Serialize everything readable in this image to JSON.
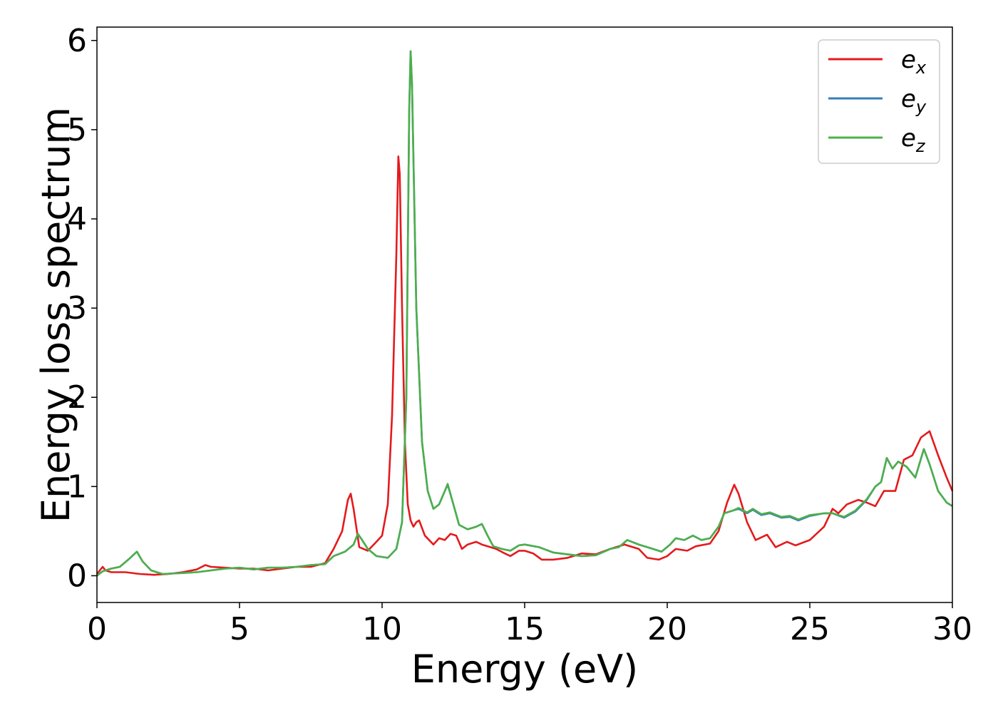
{
  "chart_data": {
    "type": "line",
    "title": "",
    "xlabel": "Energy (eV)",
    "ylabel": "Energy loss spectrum",
    "xlim": [
      0,
      30
    ],
    "ylim": [
      -0.3,
      6.15
    ],
    "xticks": [
      0,
      5,
      10,
      15,
      20,
      25,
      30
    ],
    "xtick_labels": [
      "0",
      "5",
      "10",
      "15",
      "20",
      "25",
      "30"
    ],
    "yticks": [
      0,
      1,
      2,
      3,
      4,
      5,
      6
    ],
    "ytick_labels": [
      "0",
      "1",
      "2",
      "3",
      "4",
      "5",
      "6"
    ],
    "grid": false,
    "legend_position": "top-right",
    "series": [
      {
        "name": "e_x",
        "label_base": "e",
        "label_sub": "x",
        "color": "#e41a1c",
        "points": [
          [
            0.0,
            0.02
          ],
          [
            0.1,
            0.06
          ],
          [
            0.2,
            0.1
          ],
          [
            0.3,
            0.06
          ],
          [
            0.5,
            0.04
          ],
          [
            1.0,
            0.04
          ],
          [
            1.5,
            0.02
          ],
          [
            2.0,
            0.01
          ],
          [
            2.5,
            0.02
          ],
          [
            3.0,
            0.04
          ],
          [
            3.5,
            0.07
          ],
          [
            3.8,
            0.12
          ],
          [
            4.0,
            0.1
          ],
          [
            4.5,
            0.09
          ],
          [
            5.0,
            0.08
          ],
          [
            5.5,
            0.08
          ],
          [
            6.0,
            0.06
          ],
          [
            6.5,
            0.08
          ],
          [
            7.0,
            0.1
          ],
          [
            7.5,
            0.1
          ],
          [
            8.0,
            0.14
          ],
          [
            8.3,
            0.3
          ],
          [
            8.6,
            0.5
          ],
          [
            8.8,
            0.85
          ],
          [
            8.9,
            0.92
          ],
          [
            9.0,
            0.75
          ],
          [
            9.2,
            0.32
          ],
          [
            9.5,
            0.28
          ],
          [
            9.8,
            0.38
          ],
          [
            10.0,
            0.45
          ],
          [
            10.2,
            0.8
          ],
          [
            10.35,
            1.8
          ],
          [
            10.5,
            3.6
          ],
          [
            10.57,
            4.7
          ],
          [
            10.62,
            4.5
          ],
          [
            10.7,
            3.0
          ],
          [
            10.8,
            1.5
          ],
          [
            10.9,
            0.8
          ],
          [
            11.0,
            0.62
          ],
          [
            11.1,
            0.55
          ],
          [
            11.2,
            0.6
          ],
          [
            11.3,
            0.62
          ],
          [
            11.5,
            0.45
          ],
          [
            11.8,
            0.35
          ],
          [
            12.0,
            0.42
          ],
          [
            12.2,
            0.4
          ],
          [
            12.4,
            0.47
          ],
          [
            12.6,
            0.45
          ],
          [
            12.8,
            0.3
          ],
          [
            13.0,
            0.35
          ],
          [
            13.3,
            0.38
          ],
          [
            13.5,
            0.35
          ],
          [
            13.8,
            0.32
          ],
          [
            14.0,
            0.3
          ],
          [
            14.3,
            0.25
          ],
          [
            14.5,
            0.22
          ],
          [
            14.8,
            0.28
          ],
          [
            15.0,
            0.28
          ],
          [
            15.3,
            0.25
          ],
          [
            15.6,
            0.18
          ],
          [
            16.0,
            0.18
          ],
          [
            16.5,
            0.2
          ],
          [
            17.0,
            0.25
          ],
          [
            17.5,
            0.24
          ],
          [
            18.0,
            0.3
          ],
          [
            18.5,
            0.35
          ],
          [
            19.0,
            0.3
          ],
          [
            19.3,
            0.2
          ],
          [
            19.7,
            0.18
          ],
          [
            20.0,
            0.22
          ],
          [
            20.3,
            0.3
          ],
          [
            20.7,
            0.28
          ],
          [
            21.0,
            0.33
          ],
          [
            21.5,
            0.36
          ],
          [
            21.8,
            0.5
          ],
          [
            22.1,
            0.82
          ],
          [
            22.35,
            1.02
          ],
          [
            22.5,
            0.92
          ],
          [
            22.8,
            0.6
          ],
          [
            23.1,
            0.4
          ],
          [
            23.5,
            0.46
          ],
          [
            23.8,
            0.32
          ],
          [
            24.2,
            0.38
          ],
          [
            24.5,
            0.34
          ],
          [
            25.0,
            0.4
          ],
          [
            25.5,
            0.55
          ],
          [
            25.8,
            0.75
          ],
          [
            26.0,
            0.7
          ],
          [
            26.3,
            0.8
          ],
          [
            26.7,
            0.85
          ],
          [
            27.0,
            0.82
          ],
          [
            27.3,
            0.78
          ],
          [
            27.6,
            0.95
          ],
          [
            28.0,
            0.95
          ],
          [
            28.3,
            1.3
          ],
          [
            28.6,
            1.35
          ],
          [
            28.9,
            1.55
          ],
          [
            29.2,
            1.62
          ],
          [
            29.5,
            1.35
          ],
          [
            29.8,
            1.1
          ],
          [
            30.0,
            0.95
          ]
        ]
      },
      {
        "name": "e_y",
        "label_base": "e",
        "label_sub": "y",
        "color": "#377eb8",
        "points": [
          [
            0.0,
            0.0
          ],
          [
            0.2,
            0.05
          ],
          [
            0.5,
            0.08
          ],
          [
            0.8,
            0.1
          ],
          [
            1.1,
            0.18
          ],
          [
            1.4,
            0.27
          ],
          [
            1.6,
            0.16
          ],
          [
            1.9,
            0.06
          ],
          [
            2.3,
            0.02
          ],
          [
            3.0,
            0.03
          ],
          [
            3.5,
            0.04
          ],
          [
            4.0,
            0.06
          ],
          [
            4.5,
            0.08
          ],
          [
            5.0,
            0.09
          ],
          [
            5.5,
            0.07
          ],
          [
            6.0,
            0.09
          ],
          [
            6.5,
            0.09
          ],
          [
            7.0,
            0.1
          ],
          [
            7.5,
            0.12
          ],
          [
            8.0,
            0.13
          ],
          [
            8.3,
            0.22
          ],
          [
            8.7,
            0.27
          ],
          [
            9.0,
            0.35
          ],
          [
            9.15,
            0.47
          ],
          [
            9.3,
            0.4
          ],
          [
            9.5,
            0.3
          ],
          [
            9.8,
            0.22
          ],
          [
            10.2,
            0.2
          ],
          [
            10.5,
            0.3
          ],
          [
            10.7,
            0.6
          ],
          [
            10.85,
            2.0
          ],
          [
            10.95,
            5.2
          ],
          [
            11.0,
            5.88
          ],
          [
            11.05,
            5.5
          ],
          [
            11.2,
            3.0
          ],
          [
            11.4,
            1.5
          ],
          [
            11.6,
            0.95
          ],
          [
            11.8,
            0.75
          ],
          [
            12.0,
            0.8
          ],
          [
            12.2,
            0.95
          ],
          [
            12.3,
            1.02
          ],
          [
            12.5,
            0.8
          ],
          [
            12.7,
            0.57
          ],
          [
            13.0,
            0.52
          ],
          [
            13.3,
            0.55
          ],
          [
            13.5,
            0.58
          ],
          [
            13.7,
            0.45
          ],
          [
            13.9,
            0.33
          ],
          [
            14.2,
            0.3
          ],
          [
            14.5,
            0.28
          ],
          [
            14.8,
            0.34
          ],
          [
            15.0,
            0.35
          ],
          [
            15.5,
            0.32
          ],
          [
            16.0,
            0.26
          ],
          [
            16.5,
            0.24
          ],
          [
            17.0,
            0.22
          ],
          [
            17.5,
            0.23
          ],
          [
            18.0,
            0.3
          ],
          [
            18.3,
            0.32
          ],
          [
            18.6,
            0.4
          ],
          [
            19.0,
            0.35
          ],
          [
            19.5,
            0.3
          ],
          [
            19.8,
            0.27
          ],
          [
            20.1,
            0.35
          ],
          [
            20.3,
            0.42
          ],
          [
            20.6,
            0.4
          ],
          [
            20.9,
            0.45
          ],
          [
            21.2,
            0.4
          ],
          [
            21.5,
            0.42
          ],
          [
            21.8,
            0.55
          ],
          [
            22.0,
            0.7
          ],
          [
            22.3,
            0.73
          ],
          [
            22.5,
            0.75
          ],
          [
            22.8,
            0.7
          ],
          [
            23.0,
            0.74
          ],
          [
            23.3,
            0.68
          ],
          [
            23.6,
            0.7
          ],
          [
            24.0,
            0.65
          ],
          [
            24.3,
            0.66
          ],
          [
            24.6,
            0.62
          ],
          [
            25.0,
            0.67
          ],
          [
            25.5,
            0.7
          ],
          [
            25.8,
            0.7
          ],
          [
            26.2,
            0.65
          ],
          [
            26.6,
            0.72
          ],
          [
            27.0,
            0.85
          ],
          [
            27.3,
            1.0
          ],
          [
            27.5,
            1.05
          ],
          [
            27.7,
            1.32
          ],
          [
            27.9,
            1.2
          ],
          [
            28.1,
            1.28
          ],
          [
            28.4,
            1.22
          ],
          [
            28.7,
            1.1
          ],
          [
            29.0,
            1.42
          ],
          [
            29.2,
            1.25
          ],
          [
            29.5,
            0.95
          ],
          [
            29.8,
            0.82
          ],
          [
            30.0,
            0.78
          ]
        ]
      },
      {
        "name": "e_z",
        "label_base": "e",
        "label_sub": "z",
        "color": "#4daf4a",
        "points": [
          [
            0.0,
            0.0
          ],
          [
            0.2,
            0.05
          ],
          [
            0.5,
            0.08
          ],
          [
            0.8,
            0.1
          ],
          [
            1.1,
            0.18
          ],
          [
            1.4,
            0.27
          ],
          [
            1.6,
            0.16
          ],
          [
            1.9,
            0.06
          ],
          [
            2.3,
            0.02
          ],
          [
            3.0,
            0.03
          ],
          [
            3.5,
            0.04
          ],
          [
            4.0,
            0.06
          ],
          [
            4.5,
            0.08
          ],
          [
            5.0,
            0.09
          ],
          [
            5.5,
            0.07
          ],
          [
            6.0,
            0.09
          ],
          [
            6.5,
            0.09
          ],
          [
            7.0,
            0.1
          ],
          [
            7.5,
            0.12
          ],
          [
            8.0,
            0.13
          ],
          [
            8.3,
            0.22
          ],
          [
            8.7,
            0.27
          ],
          [
            9.0,
            0.35
          ],
          [
            9.15,
            0.47
          ],
          [
            9.3,
            0.4
          ],
          [
            9.5,
            0.3
          ],
          [
            9.8,
            0.22
          ],
          [
            10.2,
            0.2
          ],
          [
            10.5,
            0.3
          ],
          [
            10.7,
            0.6
          ],
          [
            10.85,
            2.0
          ],
          [
            10.95,
            5.2
          ],
          [
            11.0,
            5.88
          ],
          [
            11.05,
            5.5
          ],
          [
            11.2,
            3.0
          ],
          [
            11.4,
            1.5
          ],
          [
            11.6,
            0.95
          ],
          [
            11.8,
            0.75
          ],
          [
            12.0,
            0.8
          ],
          [
            12.2,
            0.95
          ],
          [
            12.3,
            1.03
          ],
          [
            12.5,
            0.8
          ],
          [
            12.7,
            0.57
          ],
          [
            13.0,
            0.52
          ],
          [
            13.3,
            0.55
          ],
          [
            13.5,
            0.58
          ],
          [
            13.7,
            0.45
          ],
          [
            13.9,
            0.33
          ],
          [
            14.2,
            0.3
          ],
          [
            14.5,
            0.28
          ],
          [
            14.8,
            0.34
          ],
          [
            15.0,
            0.35
          ],
          [
            15.5,
            0.32
          ],
          [
            16.0,
            0.26
          ],
          [
            16.5,
            0.24
          ],
          [
            17.0,
            0.22
          ],
          [
            17.5,
            0.23
          ],
          [
            18.0,
            0.3
          ],
          [
            18.3,
            0.32
          ],
          [
            18.6,
            0.4
          ],
          [
            19.0,
            0.35
          ],
          [
            19.5,
            0.3
          ],
          [
            19.8,
            0.27
          ],
          [
            20.1,
            0.35
          ],
          [
            20.3,
            0.42
          ],
          [
            20.6,
            0.4
          ],
          [
            20.9,
            0.45
          ],
          [
            21.2,
            0.4
          ],
          [
            21.5,
            0.42
          ],
          [
            21.8,
            0.55
          ],
          [
            22.0,
            0.7
          ],
          [
            22.3,
            0.73
          ],
          [
            22.5,
            0.76
          ],
          [
            22.8,
            0.71
          ],
          [
            23.0,
            0.75
          ],
          [
            23.3,
            0.69
          ],
          [
            23.6,
            0.71
          ],
          [
            24.0,
            0.66
          ],
          [
            24.3,
            0.67
          ],
          [
            24.6,
            0.63
          ],
          [
            25.0,
            0.68
          ],
          [
            25.5,
            0.7
          ],
          [
            25.8,
            0.7
          ],
          [
            26.2,
            0.66
          ],
          [
            26.6,
            0.73
          ],
          [
            27.0,
            0.86
          ],
          [
            27.3,
            1.0
          ],
          [
            27.5,
            1.05
          ],
          [
            27.7,
            1.32
          ],
          [
            27.9,
            1.2
          ],
          [
            28.1,
            1.28
          ],
          [
            28.4,
            1.22
          ],
          [
            28.7,
            1.1
          ],
          [
            29.0,
            1.42
          ],
          [
            29.2,
            1.25
          ],
          [
            29.5,
            0.95
          ],
          [
            29.8,
            0.82
          ],
          [
            30.0,
            0.78
          ]
        ]
      }
    ]
  }
}
